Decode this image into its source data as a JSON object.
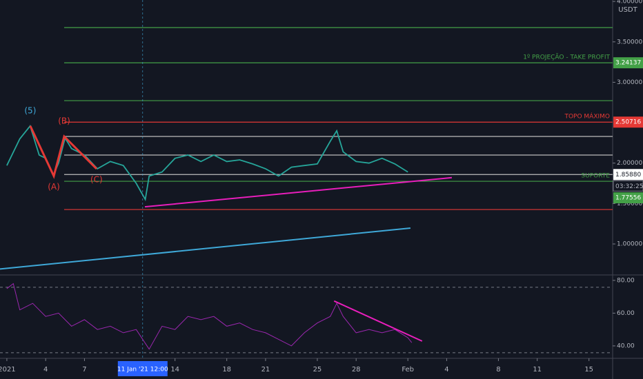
{
  "chart_data": [
    {
      "type": "line",
      "unit": "USDT",
      "xlim": [
        -0.53,
        46.83
      ],
      "ylim": [
        0.608,
        4.018
      ],
      "xticks": [
        {
          "value": 0,
          "label": "2021"
        },
        {
          "value": 3,
          "label": "4"
        },
        {
          "value": 6,
          "label": "7"
        },
        {
          "value": 13,
          "label": "14"
        },
        {
          "value": 17,
          "label": "18"
        },
        {
          "value": 20,
          "label": "21"
        },
        {
          "value": 24,
          "label": "25"
        },
        {
          "value": 27,
          "label": "28"
        },
        {
          "value": 31,
          "label": "Feb"
        },
        {
          "value": 34,
          "label": "4"
        },
        {
          "value": 38,
          "label": "8"
        },
        {
          "value": 41,
          "label": "11"
        },
        {
          "value": 45,
          "label": "15"
        }
      ],
      "crosshair": {
        "value": 10.5,
        "label": "11 Jan '21   12:00"
      },
      "yticks": [
        {
          "value": 1,
          "label": "1.00000"
        },
        {
          "value": 1.5,
          "label": "1.50000"
        },
        {
          "value": 2,
          "label": "2.00000"
        },
        {
          "value": 3,
          "label": "3.00000"
        },
        {
          "value": 3.5,
          "label": "3.50000"
        },
        {
          "value": 4,
          "label": "4.00000"
        }
      ],
      "x": [
        0,
        1,
        1.8,
        2.5,
        3,
        3.6,
        4,
        4.5,
        5,
        6,
        7,
        8,
        9,
        10,
        10.7,
        11,
        12,
        13,
        14,
        15,
        16,
        17,
        18,
        19,
        20,
        21,
        22,
        23,
        24,
        25,
        25.5,
        26,
        27,
        28,
        29,
        30,
        31
      ],
      "series": [
        {
          "color": "#26a69a",
          "values": [
            1.97,
            2.3,
            2.46,
            2.1,
            2.06,
            1.85,
            2.0,
            2.31,
            2.18,
            2.1,
            1.93,
            2.02,
            1.97,
            1.75,
            1.55,
            1.84,
            1.89,
            2.06,
            2.1,
            2.02,
            2.1,
            2.02,
            2.04,
            1.99,
            1.93,
            1.84,
            1.95,
            1.97,
            1.99,
            2.27,
            2.4,
            2.14,
            2.02,
            2.0,
            2.06,
            1.99,
            1.89
          ]
        }
      ],
      "levels": [
        {
          "value": 3.677,
          "color": "#43a047"
        },
        {
          "value": 3.24137,
          "color": "#43a047",
          "text": "1º PROJEÇÃO - TAKE PROFIT"
        },
        {
          "value": 2.773,
          "color": "#43a047"
        },
        {
          "value": 2.50716,
          "color": "#e53935",
          "text": "TOPO MÁXIMO"
        },
        {
          "value": 2.33,
          "color": "#bdbdbd"
        },
        {
          "value": 2.1,
          "color": "#bdbdbd"
        },
        {
          "value": 1.8588,
          "color": "#bdbdbd"
        },
        {
          "value": 1.77556,
          "color": "#43a047",
          "text": "SUPORTE"
        },
        {
          "value": 1.426,
          "color": "#e53935"
        }
      ],
      "price_tags": [
        {
          "value": 3.24137,
          "color": "#43a047"
        },
        {
          "value": 2.50716,
          "color": "#e53935"
        },
        {
          "value": 1.8588,
          "label": "1.85880",
          "color": "#ffffff"
        },
        {
          "value": 1.77556,
          "color": "#43a047"
        }
      ],
      "countdown": "03:32:25",
      "trendlines": [
        {
          "x": [
            10.67,
            34.4
          ],
          "values": [
            1.46,
            1.82
          ],
          "color": "#e91ebc"
        },
        {
          "x": [
            -0.53,
            31.2
          ],
          "values": [
            0.69,
            1.196
          ],
          "color": "#3fa9d9"
        }
      ],
      "wave": {
        "x": [
          1.81,
          3.63,
          4.43,
          6.93
        ],
        "values": [
          2.46,
          1.84,
          2.33,
          1.93
        ],
        "labels": [
          "(5)",
          "(A)",
          "(B)",
          "(C)"
        ],
        "color": "#e53935"
      }
    },
    {
      "type": "line",
      "xlim": [
        -0.53,
        46.83
      ],
      "ylim": [
        32.4,
        82.9
      ],
      "yticks": [
        {
          "value": 40,
          "label": "40.00"
        },
        {
          "value": 60,
          "label": "60.00"
        },
        {
          "value": 80,
          "label": "80.00"
        }
      ],
      "bands": [
        75.8,
        35.8
      ],
      "x": [
        0,
        0.5,
        1,
        2,
        3,
        4,
        5,
        6,
        7,
        8,
        9,
        10,
        11,
        12,
        13,
        14,
        15,
        16,
        17,
        18,
        19,
        20,
        21,
        22,
        23,
        24,
        25,
        25.5,
        26,
        27,
        28,
        29,
        30,
        31,
        31.3
      ],
      "series": [
        {
          "color": "#9c27b0",
          "values": [
            75,
            78,
            62,
            66,
            58,
            60,
            52,
            56,
            50,
            52,
            48,
            50,
            38,
            52,
            50,
            58,
            56,
            58,
            52,
            54,
            50,
            48,
            44,
            40,
            48,
            54,
            58,
            66,
            58,
            48,
            50,
            48,
            50,
            45,
            42
          ]
        }
      ],
      "trendlines": [
        {
          "x": [
            25.3,
            32.1
          ],
          "values": [
            67.4,
            42.9
          ],
          "color": "#e91ebc"
        }
      ]
    }
  ]
}
